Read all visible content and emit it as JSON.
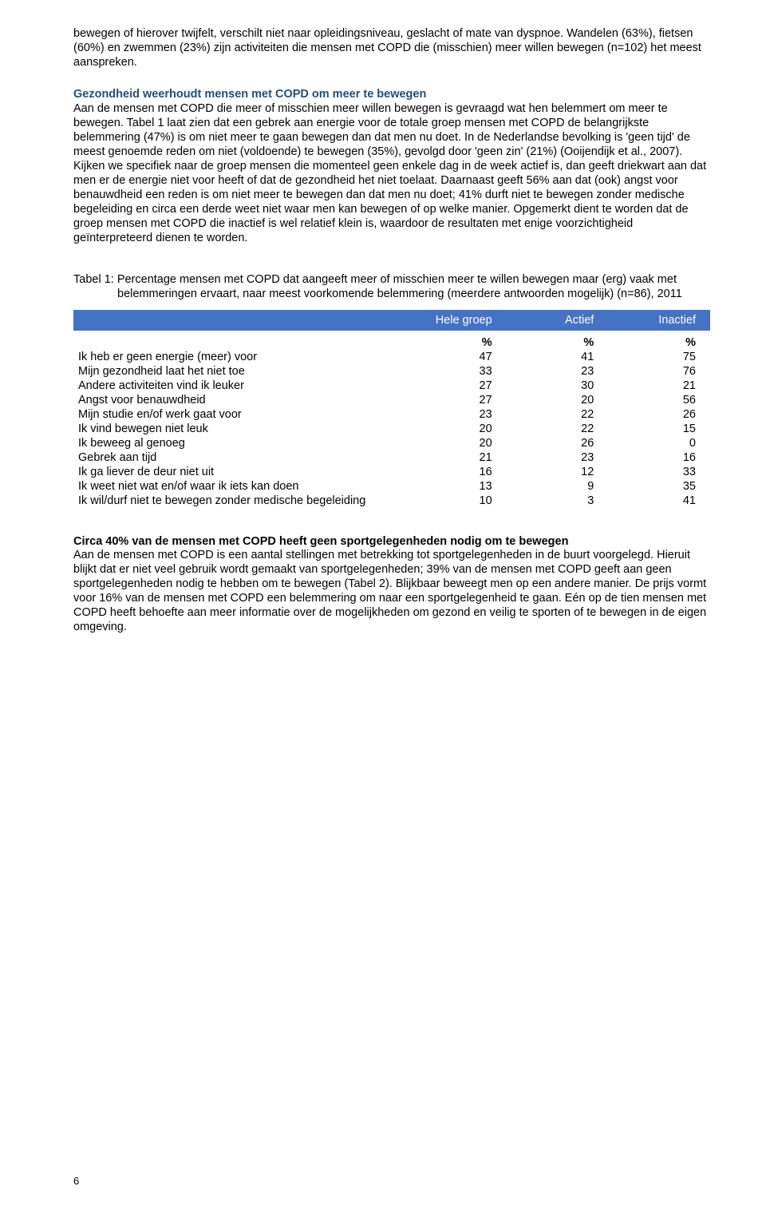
{
  "intro_para": "bewegen of hierover twijfelt, verschilt niet naar opleidingsniveau, geslacht of mate van dyspnoe. Wandelen (63%), fietsen (60%) en zwemmen (23%) zijn activiteiten die mensen met COPD die (misschien) meer willen bewegen (n=102) het meest aanspreken.",
  "section1": {
    "heading": "Gezondheid weerhoudt mensen met COPD om meer te bewegen",
    "body": "Aan de mensen met COPD die meer of misschien meer willen bewegen is gevraagd wat hen belemmert om meer te bewegen. Tabel 1 laat zien dat een gebrek aan energie voor de totale groep mensen met COPD de belangrijkste belemmering (47%) is om niet meer te gaan bewegen dan dat men nu doet. In de Nederlandse bevolking is 'geen tijd' de meest genoemde reden om niet (voldoende) te bewegen (35%), gevolgd door 'geen zin' (21%) (Ooijendijk et al., 2007). Kijken we specifiek naar de groep mensen die momenteel geen enkele dag in de week actief is, dan geeft driekwart aan dat men er de energie niet voor heeft of dat de gezondheid het niet toelaat. Daarnaast geeft 56% aan dat (ook) angst voor benauwdheid een reden is om niet meer te bewegen dan dat men nu doet; 41% durft niet te bewegen zonder medische begeleiding en circa een derde weet niet waar men kan bewegen of op welke manier. Opgemerkt dient te worden dat de groep mensen met COPD die inactief is wel relatief klein is, waardoor de resultaten met enige voorzichtigheid geïnterpreteerd dienen te worden."
  },
  "table1": {
    "caption": "Tabel 1: Percentage mensen met COPD dat aangeeft meer of misschien meer te willen bewegen maar (erg) vaak met belemmeringen ervaart, naar meest voorkomende belemmering (meerdere antwoorden mogelijk) (n=86), 2011",
    "headers": [
      "Hele groep",
      "Actief",
      "Inactief"
    ],
    "pct": "%",
    "rows": [
      {
        "label": "Ik heb er geen energie (meer) voor",
        "vals": [
          "47",
          "41",
          "75"
        ]
      },
      {
        "label": "Mijn gezondheid laat het niet toe",
        "vals": [
          "33",
          "23",
          "76"
        ]
      },
      {
        "label": "Andere activiteiten vind ik leuker",
        "vals": [
          "27",
          "30",
          "21"
        ]
      },
      {
        "label": "Angst voor benauwdheid",
        "vals": [
          "27",
          "20",
          "56"
        ]
      },
      {
        "label": "Mijn studie en/of werk gaat voor",
        "vals": [
          "23",
          "22",
          "26"
        ]
      },
      {
        "label": "Ik vind bewegen niet leuk",
        "vals": [
          "20",
          "22",
          "15"
        ]
      },
      {
        "label": "Ik beweeg al genoeg",
        "vals": [
          "20",
          "26",
          "0"
        ]
      },
      {
        "label": "Gebrek aan tijd",
        "vals": [
          "21",
          "23",
          "16"
        ]
      },
      {
        "label": "Ik ga liever de deur niet uit",
        "vals": [
          "16",
          "12",
          "33"
        ]
      },
      {
        "label": "Ik weet niet wat en/of waar ik iets kan doen",
        "vals": [
          "13",
          "9",
          "35"
        ]
      },
      {
        "label": "Ik wil/durf niet te bewegen zonder medische begeleiding",
        "vals": [
          "10",
          "3",
          "41"
        ]
      }
    ],
    "heading_color": "#1f4e79",
    "header_bg": "#4472c4",
    "header_text_color": "#ffffff"
  },
  "section2": {
    "heading": "Circa 40% van de mensen met COPD heeft geen sportgelegenheden nodig om te bewegen",
    "body": "Aan de mensen met COPD is een aantal stellingen met betrekking tot sportgelegenheden in de buurt voorgelegd. Hieruit blijkt dat er niet veel gebruik wordt gemaakt van sportgelegenheden; 39% van de mensen met COPD geeft aan geen sportgelegenheden nodig te hebben om te bewegen (Tabel 2). Blijkbaar beweegt men op een andere manier. De prijs vormt voor 16% van de mensen met COPD een belemmering om naar een sportgelegenheid te gaan. Eén op de tien mensen met COPD heeft behoefte aan meer informatie over de mogelijkheden om gezond en veilig te sporten of te bewegen in de eigen omgeving."
  },
  "page_number": "6"
}
